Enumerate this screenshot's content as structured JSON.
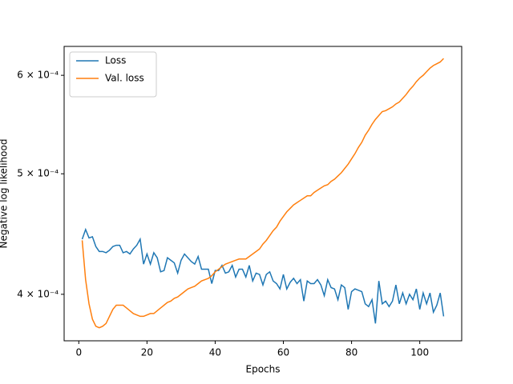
{
  "chart_data": {
    "type": "line",
    "xlabel": "Epochs",
    "ylabel": "Negative log likelihood",
    "x": [
      1,
      2,
      3,
      4,
      5,
      6,
      7,
      8,
      9,
      10,
      11,
      12,
      13,
      14,
      15,
      16,
      17,
      18,
      19,
      20,
      21,
      22,
      23,
      24,
      25,
      26,
      27,
      28,
      29,
      30,
      31,
      32,
      33,
      34,
      35,
      36,
      37,
      38,
      39,
      40,
      41,
      42,
      43,
      44,
      45,
      46,
      47,
      48,
      49,
      50,
      51,
      52,
      53,
      54,
      55,
      56,
      57,
      58,
      59,
      60,
      61,
      62,
      63,
      64,
      65,
      66,
      67,
      68,
      69,
      70,
      71,
      72,
      73,
      74,
      75,
      76,
      77,
      78,
      79,
      80,
      81,
      82,
      83,
      84,
      85,
      86,
      87,
      88,
      89,
      90,
      91,
      92,
      93,
      94,
      95,
      96,
      97,
      98,
      99,
      100,
      101,
      102,
      103,
      104,
      105,
      106,
      107
    ],
    "series": [
      {
        "name": "Loss",
        "color": "#1f77b4",
        "values": [
          0.000443,
          0.000451,
          0.000444,
          0.000445,
          0.000437,
          0.000433,
          0.000433,
          0.000432,
          0.000434,
          0.000437,
          0.000438,
          0.000438,
          0.000432,
          0.000433,
          0.000431,
          0.000435,
          0.000438,
          0.000443,
          0.000423,
          0.000431,
          0.000423,
          0.000432,
          0.000428,
          0.000417,
          0.000418,
          0.000428,
          0.000426,
          0.000424,
          0.000416,
          0.000426,
          0.000431,
          0.000428,
          0.000425,
          0.000423,
          0.000429,
          0.000419,
          0.000419,
          0.000419,
          0.000408,
          0.000418,
          0.000418,
          0.000422,
          0.000416,
          0.000417,
          0.000422,
          0.000413,
          0.000419,
          0.000419,
          0.000413,
          0.000422,
          0.00041,
          0.000416,
          0.000415,
          0.000407,
          0.000415,
          0.000417,
          0.00041,
          0.000408,
          0.000404,
          0.000415,
          0.000404,
          0.000409,
          0.000412,
          0.000408,
          0.000411,
          0.000395,
          0.00041,
          0.000408,
          0.000408,
          0.000411,
          0.000407,
          0.000399,
          0.000411,
          0.000405,
          0.000404,
          0.000396,
          0.000407,
          0.000405,
          0.000389,
          0.000402,
          0.000404,
          0.000403,
          0.000402,
          0.000393,
          0.000391,
          0.000396,
          0.000379,
          0.00041,
          0.000393,
          0.000395,
          0.000391,
          0.000395,
          0.000407,
          0.000393,
          0.000401,
          0.000393,
          0.0004,
          0.000396,
          0.000404,
          0.000389,
          0.000401,
          0.000393,
          0.000401,
          0.000387,
          0.000392,
          0.000401,
          0.000384
        ]
      },
      {
        "name": "Val. loss",
        "color": "#ff7f0e",
        "values": [
          0.000442,
          0.000411,
          0.000393,
          0.000382,
          0.000377,
          0.000376,
          0.000377,
          0.000379,
          0.000384,
          0.000389,
          0.000392,
          0.000392,
          0.000392,
          0.00039,
          0.000388,
          0.000386,
          0.000385,
          0.000384,
          0.000384,
          0.000385,
          0.000386,
          0.000386,
          0.000388,
          0.00039,
          0.000392,
          0.000394,
          0.000395,
          0.000397,
          0.000398,
          0.0004,
          0.000402,
          0.000404,
          0.000405,
          0.000406,
          0.000408,
          0.00041,
          0.000411,
          0.000412,
          0.000414,
          0.000417,
          0.000419,
          0.000421,
          0.000423,
          0.000424,
          0.000425,
          0.000426,
          0.000427,
          0.000427,
          0.000427,
          0.000429,
          0.000431,
          0.000433,
          0.000435,
          0.000439,
          0.000442,
          0.000446,
          0.00045,
          0.000453,
          0.000458,
          0.000462,
          0.000466,
          0.000469,
          0.000472,
          0.000474,
          0.000476,
          0.000478,
          0.00048,
          0.00048,
          0.000483,
          0.000485,
          0.000487,
          0.000489,
          0.00049,
          0.000493,
          0.000495,
          0.000498,
          0.000501,
          0.000505,
          0.000509,
          0.000514,
          0.000519,
          0.000525,
          0.00053,
          0.000537,
          0.000542,
          0.000548,
          0.000553,
          0.000557,
          0.000561,
          0.000562,
          0.000564,
          0.000566,
          0.000569,
          0.000571,
          0.000575,
          0.000579,
          0.000584,
          0.000588,
          0.000593,
          0.000597,
          0.0006,
          0.000604,
          0.000608,
          0.000611,
          0.000613,
          0.000615,
          0.000619
        ]
      }
    ],
    "xlim": [
      -4.3,
      112.3
    ],
    "xticks": [
      0,
      20,
      40,
      60,
      80,
      100
    ],
    "ylim": [
      0.000367,
      0.000633
    ],
    "yscale": "log",
    "yticks": [
      {
        "value": 0.0004,
        "label": "4 × 10⁻⁴"
      },
      {
        "value": 0.0005,
        "label": "5 × 10⁻⁴"
      },
      {
        "value": 0.0006,
        "label": "6 × 10⁻⁴"
      }
    ],
    "legend": "upper left"
  }
}
